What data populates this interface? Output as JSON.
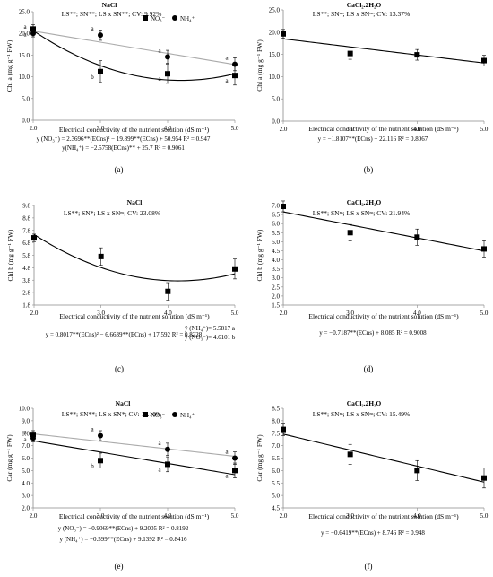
{
  "chart_data": [
    {
      "type": "scatter",
      "panel_label": "(a)",
      "title": "NaCl",
      "stats": "LS**; SN**; LS x SN**; CV: 9.92%",
      "ylabel": "Chl a (mg g⁻¹ FW)",
      "xlabel": "Electrical conductivity of the nutrient solution  (dS m⁻¹)",
      "xlim": [
        2.0,
        5.0
      ],
      "ylim": [
        0.0,
        25.0
      ],
      "xticks": [
        "2.0",
        "3.0",
        "4.0",
        "5.0"
      ],
      "yticks": [
        "0.0",
        "5.0",
        "10.0",
        "15.0",
        "20.0",
        "25.0"
      ],
      "legend": {
        "position": "top-right",
        "entries": [
          "NO₃⁻",
          "NH₄⁺"
        ]
      },
      "series": [
        {
          "name": "NO₃⁻",
          "marker": "square",
          "color": "#000000",
          "x": [
            2.0,
            3.0,
            4.0,
            5.0
          ],
          "y": [
            21.0,
            11.2,
            10.7,
            10.3
          ],
          "err": [
            1.0,
            2.5,
            2.2,
            2.2
          ],
          "letters": [
            "a",
            "b",
            "a",
            "a"
          ],
          "fit": "quadratic",
          "coef": [
            2.3696,
            -19.899,
            50.954
          ],
          "fit_color": "#000000"
        },
        {
          "name": "NH₄⁺",
          "marker": "circle",
          "color": "#000000",
          "x": [
            2.0,
            3.0,
            4.0,
            5.0
          ],
          "y": [
            20.0,
            19.6,
            14.6,
            12.9
          ],
          "err": [
            0.8,
            1.2,
            1.5,
            1.5
          ],
          "letters": [
            "a",
            "a",
            "a",
            "a"
          ],
          "fit": "linear",
          "coef": [
            -2.5758,
            25.7
          ],
          "fit_color": "#aaaaaa"
        }
      ],
      "equations": [
        "y (NO₃⁻) = 2.3696**(ECns)² − 19.899**(ECns) + 50.954 R² = 0.947",
        "y(NH₄⁺) = −2.5758(ECns)** + 25.7 R² = 0.9061"
      ]
    },
    {
      "type": "scatter",
      "panel_label": "(b)",
      "title": "CaCl₂.2H₂O",
      "stats": "LS**; SNⁿˢ; LS x SNⁿˢ; CV: 13.37%",
      "ylabel": "Chl a (mg g⁻¹ FW)",
      "xlabel": "Electrical conductivity of the nutrient solution (dS m⁻¹)",
      "xlim": [
        2.0,
        5.0
      ],
      "ylim": [
        0.0,
        25.0
      ],
      "xticks": [
        "2.0",
        "3.0",
        "4.0",
        "5.0"
      ],
      "yticks": [
        "0.0",
        "5.0",
        "10.0",
        "15.0",
        "20.0",
        "25.0"
      ],
      "series": [
        {
          "marker": "square",
          "color": "#000000",
          "x": [
            2.0,
            3.0,
            4.0,
            5.0
          ],
          "y": [
            19.6,
            15.2,
            14.9,
            13.6
          ],
          "err": [
            1.0,
            1.3,
            1.2,
            1.2
          ],
          "fit": "linear",
          "coef": [
            -1.8107,
            22.116
          ],
          "fit_color": "#000000"
        }
      ],
      "equations": [
        "y = −1.8107**(ECns) + 22.116 R² = 0.8067"
      ]
    },
    {
      "type": "scatter",
      "panel_label": "(c)",
      "title": "NaCl",
      "stats": "LS**; SN*; LS x SNⁿˢ; CV: 23.08%",
      "ylabel": "Chl b (mg g⁻¹ FW)",
      "xlabel": "Electrical conductivity of the nutrient solution (dS m⁻¹)",
      "xlim": [
        2.0,
        5.0
      ],
      "ylim": [
        1.8,
        9.8
      ],
      "xticks": [
        "2.0",
        "3.0",
        "4.0",
        "5.0"
      ],
      "yticks": [
        "1.8",
        "2.8",
        "3.8",
        "4.8",
        "5.8",
        "6.8",
        "7.8",
        "8.8",
        "9.8"
      ],
      "series": [
        {
          "marker": "square",
          "color": "#000000",
          "x": [
            2.0,
            3.0,
            4.0,
            5.0
          ],
          "y": [
            7.2,
            5.7,
            2.9,
            4.7
          ],
          "err": [
            0.3,
            0.7,
            0.7,
            0.8
          ],
          "fit": "quadratic",
          "coef": [
            0.8017,
            -6.6639,
            17.592
          ],
          "fit_color": "#000000"
        }
      ],
      "equations": [
        "y = 0.8017**(ECns)² − 6.6639**(ECns) + 17.592 R² = 0.8228"
      ],
      "means": [
        "ȳ (NH₄⁺)= 5.5817 a",
        "ȳ (NO₃⁻)= 4.6101 b"
      ]
    },
    {
      "type": "scatter",
      "panel_label": "(d)",
      "title": "CaCl₂.2H₂O",
      "stats": "LS**; SNⁿˢ; LS x SNⁿˢ; CV: 21.94%",
      "ylabel": "Chl b (mg g⁻¹ FW)",
      "xlabel": "Electrical conductivity of the nutrient solution (dS m⁻¹)",
      "xlim": [
        2.0,
        5.0
      ],
      "ylim": [
        1.5,
        7.0
      ],
      "xticks": [
        "2.0",
        "3.0",
        "4.0",
        "5.0"
      ],
      "yticks": [
        "1.5",
        "2.0",
        "2.5",
        "3.0",
        "3.5",
        "4.0",
        "4.5",
        "5.0",
        "5.5",
        "6.0",
        "6.5",
        "7.0"
      ],
      "series": [
        {
          "marker": "square",
          "color": "#000000",
          "x": [
            2.0,
            3.0,
            4.0,
            5.0
          ],
          "y": [
            6.95,
            5.5,
            5.25,
            4.6
          ],
          "err": [
            0.3,
            0.45,
            0.45,
            0.45
          ],
          "fit": "linear",
          "coef": [
            -0.7187,
            8.085
          ],
          "fit_color": "#000000"
        }
      ],
      "equations": [
        "y = −0.7187**(ECns) + 8.085 R² = 0.9008"
      ]
    },
    {
      "type": "scatter",
      "panel_label": "(e)",
      "title": "NaCl",
      "stats": "LS**; SN**; LS x SN*; CV: 11.10%",
      "ylabel": "Car (mg g⁻¹ FW)",
      "xlabel": "Electrical conductivity of the nutrient solution (dS m⁻¹)",
      "xlim": [
        2.0,
        5.0
      ],
      "ylim": [
        2.0,
        10.0
      ],
      "xticks": [
        "2.0",
        "3.0",
        "4.0",
        "5.0"
      ],
      "yticks": [
        "2.0",
        "3.0",
        "4.0",
        "5.0",
        "6.0",
        "7.0",
        "8.0",
        "9.0",
        "10.0"
      ],
      "legend": {
        "position": "top-right",
        "entries": [
          "NO₃⁻",
          "NH₄⁺"
        ]
      },
      "series": [
        {
          "name": "NO₃⁻",
          "marker": "square",
          "color": "#000000",
          "x": [
            2.0,
            3.0,
            4.0,
            5.0
          ],
          "y": [
            7.9,
            5.8,
            5.5,
            5.0
          ],
          "err": [
            0.3,
            0.6,
            0.6,
            0.6
          ],
          "letters": [
            "a",
            "b",
            "a",
            "a"
          ],
          "fit": "linear",
          "coef": [
            -0.9069,
            9.2005
          ],
          "fit_color": "#000000"
        },
        {
          "name": "NH₄⁺",
          "marker": "circle",
          "color": "#000000",
          "x": [
            2.0,
            3.0,
            4.0,
            5.0
          ],
          "y": [
            7.6,
            7.8,
            6.7,
            6.0
          ],
          "err": [
            0.3,
            0.4,
            0.5,
            0.5
          ],
          "letters": [
            "a",
            "a",
            "a",
            "a"
          ],
          "fit": "linear",
          "coef": [
            -0.599,
            9.1392
          ],
          "fit_color": "#aaaaaa"
        }
      ],
      "equations": [
        "y (NO₃⁻) = −0.9069**(ECns) + 9.2005 R² = 0.8192",
        "y (NH₄⁺) = −0.599**(ECns) + 9.1392 R² = 0.8416"
      ]
    },
    {
      "type": "scatter",
      "panel_label": "(f)",
      "title": "CaCl₂.2H₂O",
      "stats": "LS**; SNⁿˢ; LS x SNⁿˢ; CV: 15.49%",
      "ylabel": "Car (mg g⁻¹ FW)",
      "xlabel": "Electrical conductivity of the nutrient solution (dS m⁻¹)",
      "xlim": [
        2.0,
        5.0
      ],
      "ylim": [
        4.5,
        8.5
      ],
      "xticks": [
        "2.0",
        "3.0",
        "4.0",
        "5.0"
      ],
      "yticks": [
        "4.5",
        "5.0",
        "5.5",
        "6.0",
        "6.5",
        "7.0",
        "7.5",
        "8.0",
        "8.5"
      ],
      "series": [
        {
          "marker": "square",
          "color": "#000000",
          "x": [
            2.0,
            3.0,
            4.0,
            5.0
          ],
          "y": [
            7.65,
            6.65,
            6.0,
            5.7
          ],
          "err": [
            0.25,
            0.4,
            0.4,
            0.4
          ],
          "fit": "linear",
          "coef": [
            -0.6419,
            8.746
          ],
          "fit_color": "#000000"
        }
      ],
      "equations": [
        "y = −0.6419**(ECns) + 8.746 R² = 0.948"
      ]
    }
  ]
}
